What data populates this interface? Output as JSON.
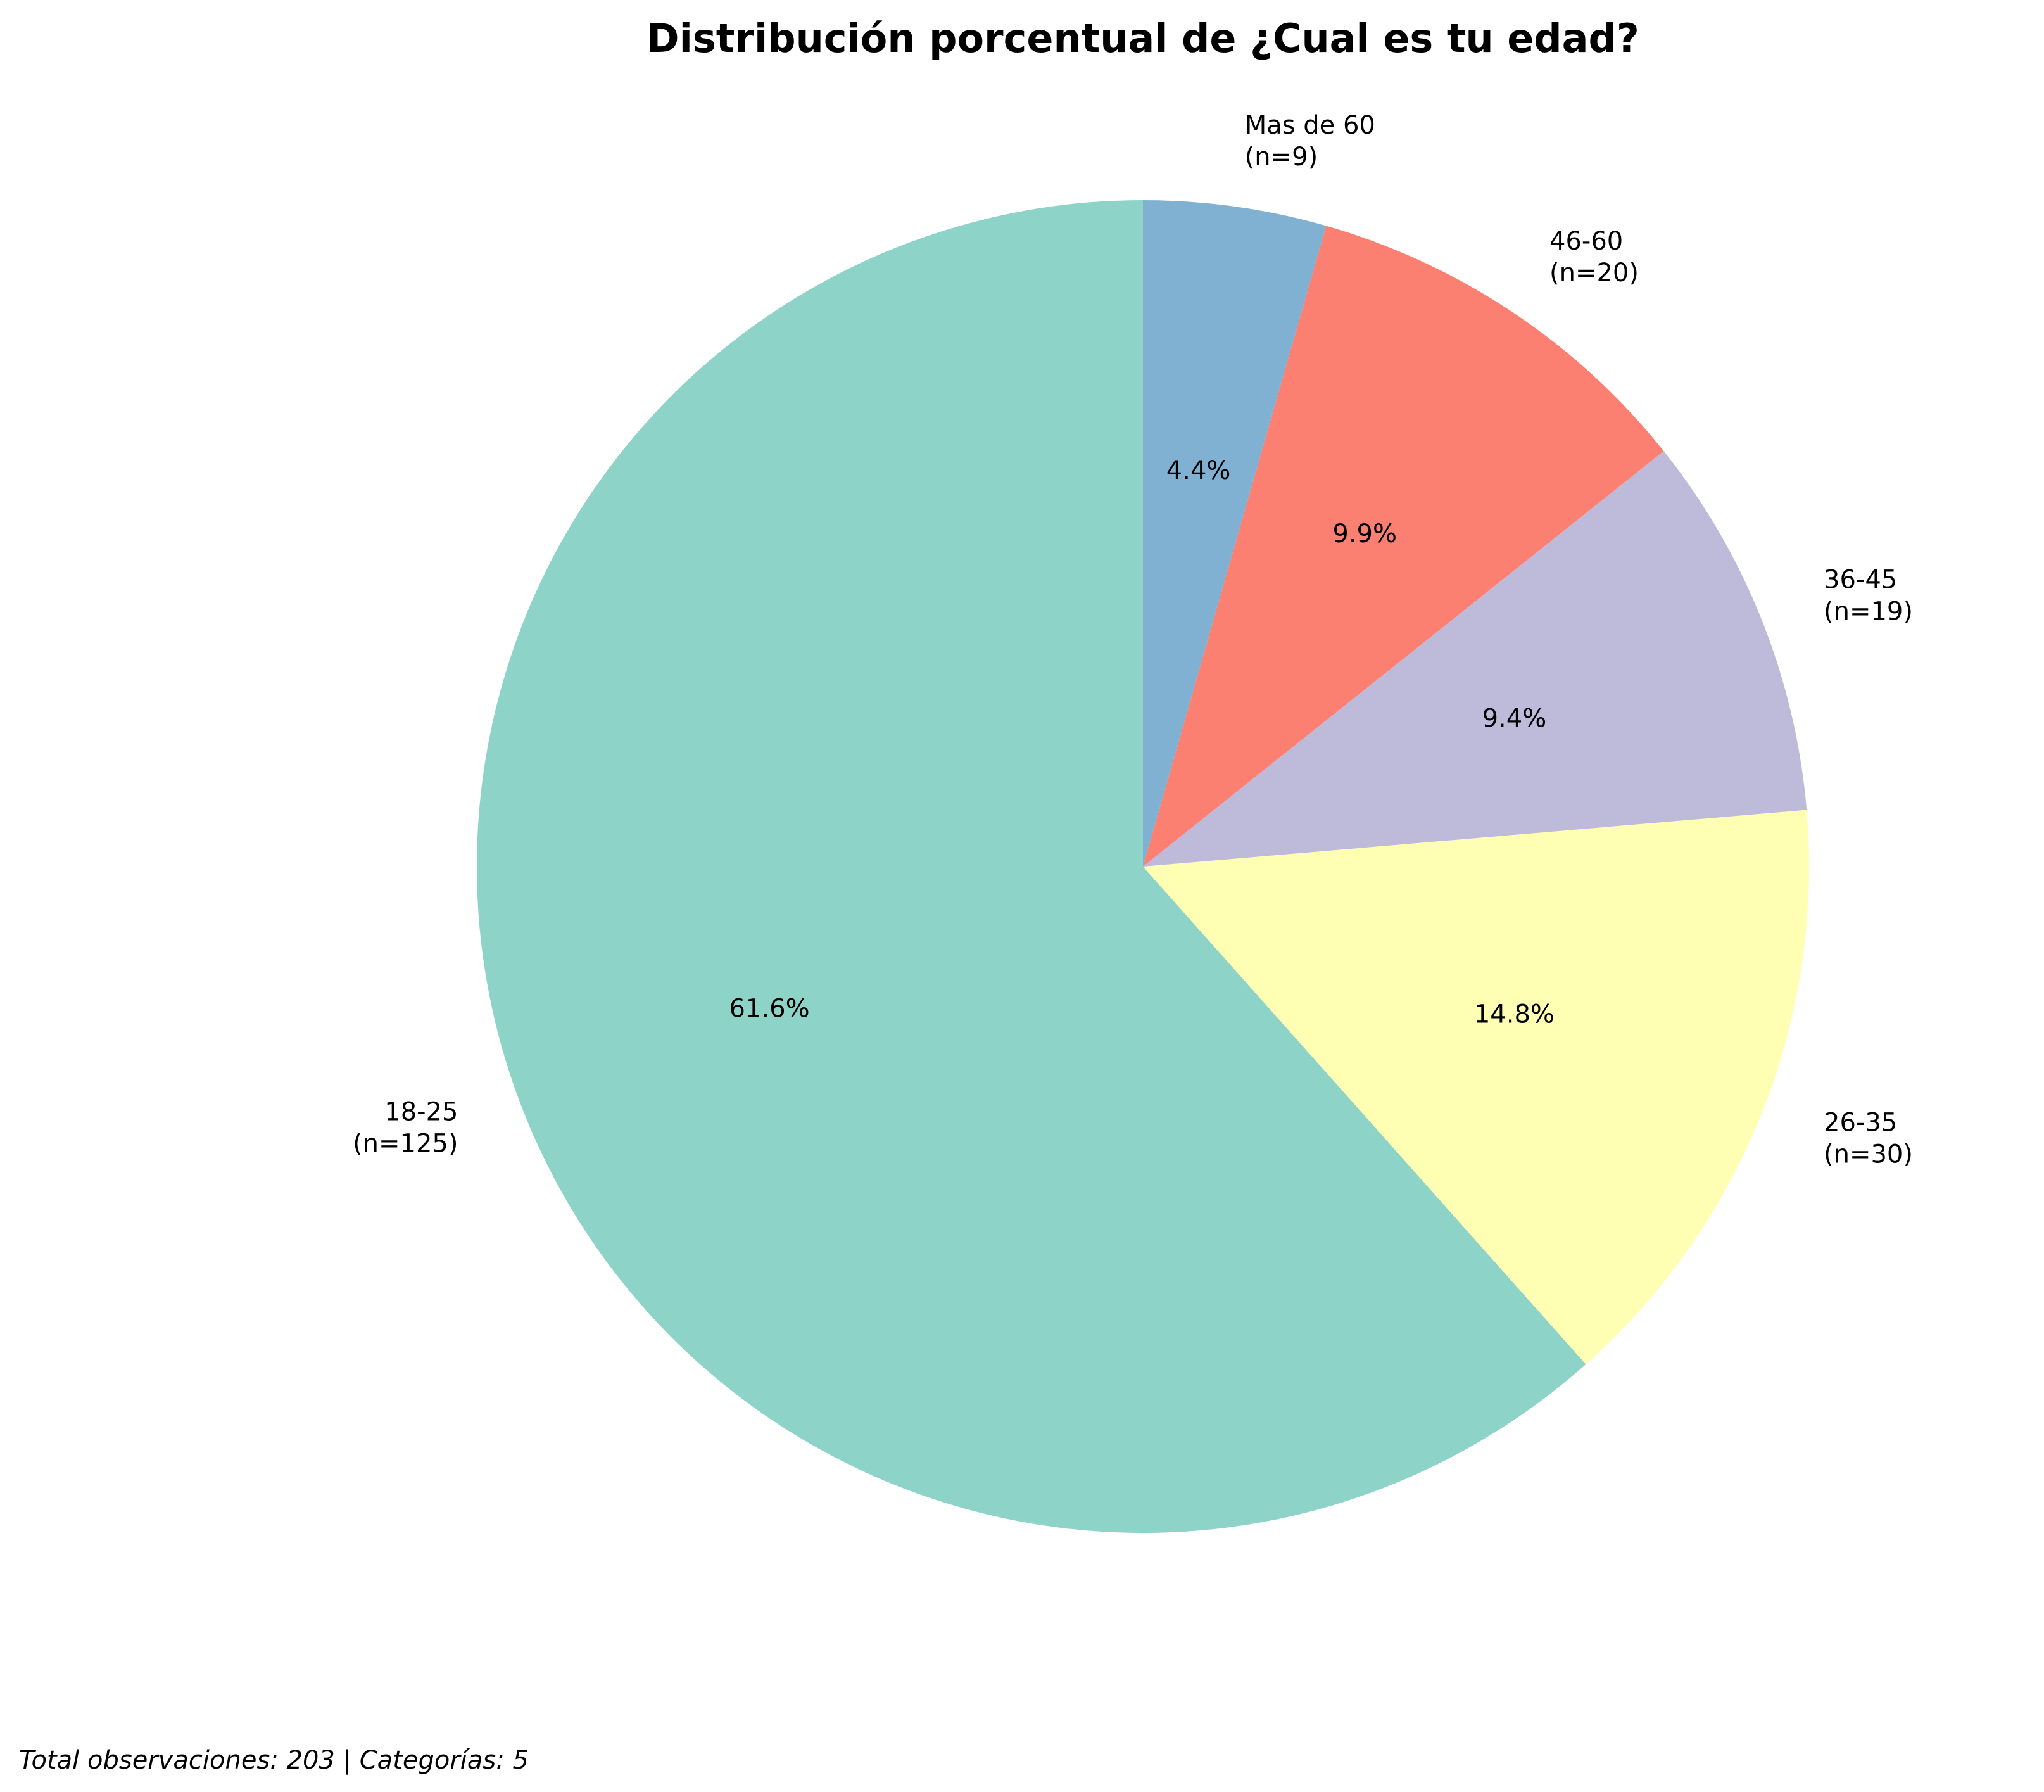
{
  "chart_data": {
    "type": "pie",
    "title": "Distribución porcentual de ¿Cual es tu edad?",
    "categories": [
      "18-25",
      "26-35",
      "36-45",
      "46-60",
      "Mas de 60"
    ],
    "values": [
      125,
      30,
      19,
      20,
      9
    ],
    "counts_text": [
      "(n=125)",
      "(n=30)",
      "(n=19)",
      "(n=20)",
      "(n=9)"
    ],
    "percent_labels": [
      "61.6%",
      "14.8%",
      "9.4%",
      "9.9%",
      "4.4%"
    ],
    "colors": [
      "#8dd3c7",
      "#ffffb3",
      "#bebada",
      "#fb8072",
      "#80b1d3"
    ],
    "start_angle_deg": 90,
    "direction": "counterclockwise",
    "footnote": "Total observaciones: 203 | Categorías: 5"
  }
}
